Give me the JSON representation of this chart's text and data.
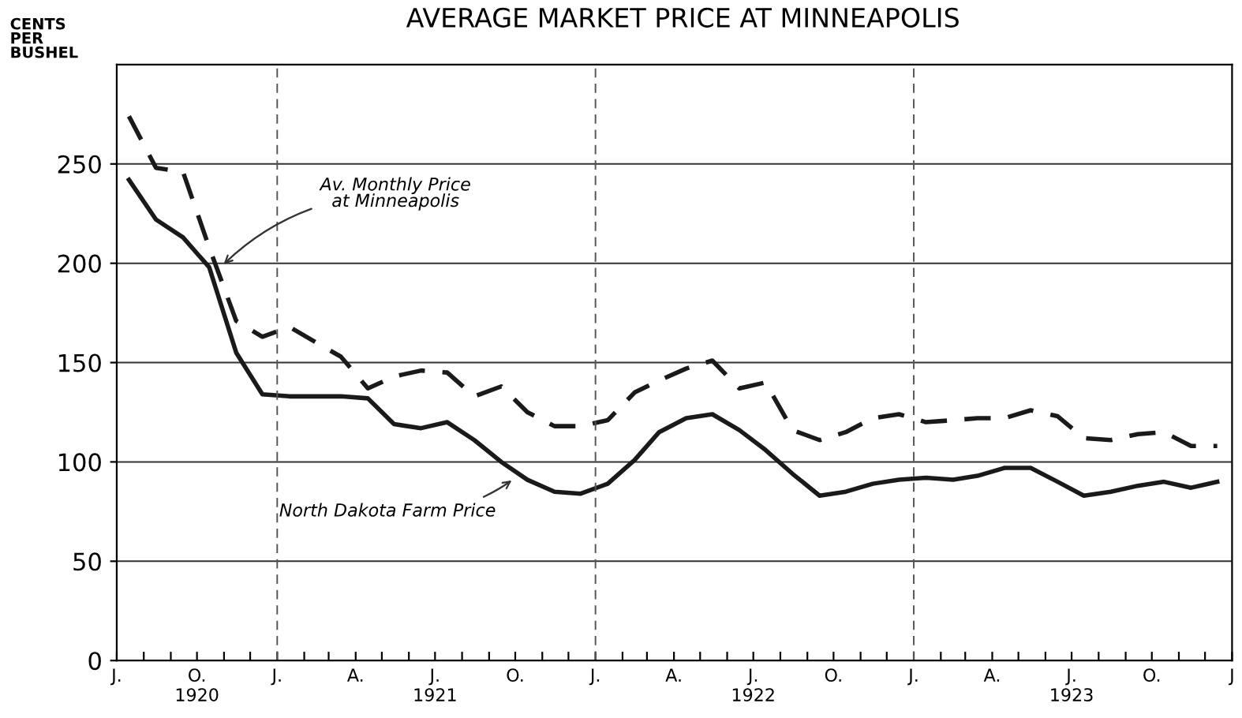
{
  "chart_data": {
    "type": "line",
    "title": "AVERAGE MARKET PRICE AT MINNEAPOLIS",
    "ylabel": "CENTS\nPER\nBUSHEL",
    "x": [
      "1920-07-15",
      "1920-08-15",
      "1920-09-15",
      "1920-10-15",
      "1920-11-15",
      "1920-12-15",
      "1921-01-15",
      "1921-02-15",
      "1921-03-15",
      "1921-04-15",
      "1921-05-15",
      "1921-06-15",
      "1921-07-15",
      "1921-08-15",
      "1921-09-15",
      "1921-10-15",
      "1921-11-15",
      "1921-12-15",
      "1922-01-15",
      "1922-02-15",
      "1922-03-15",
      "1922-04-15",
      "1922-05-15",
      "1922-06-15",
      "1922-07-15",
      "1922-08-15",
      "1922-09-15",
      "1922-10-15",
      "1922-11-15",
      "1922-12-15",
      "1923-01-15",
      "1923-02-15",
      "1923-03-15",
      "1923-04-15",
      "1923-05-15",
      "1923-06-15",
      "1923-07-15",
      "1923-08-15",
      "1923-09-15",
      "1923-10-15",
      "1923-11-15",
      "1923-12-15"
    ],
    "series": [
      {
        "color": "#1a1a1a",
        "line_style": "dashed",
        "values": [
          274,
          248,
          246,
          208,
          171,
          163,
          168,
          160,
          153,
          137,
          143,
          146,
          145,
          133,
          138,
          125,
          118,
          118,
          121,
          135,
          141,
          147,
          151,
          137,
          140,
          116,
          111,
          115,
          122,
          124,
          120,
          121,
          122,
          122,
          126,
          123,
          112,
          111,
          114,
          115,
          108,
          108
        ]
      },
      {
        "color": "#1a1a1a",
        "line_style": "solid",
        "values": [
          242,
          222,
          213,
          198,
          155,
          134,
          133,
          133,
          133,
          132,
          119,
          117,
          120,
          111,
          100,
          91,
          85,
          84,
          89,
          101,
          115,
          122,
          124,
          116,
          106,
          94,
          83,
          85,
          89,
          91,
          92,
          91,
          93,
          97,
          97,
          90,
          83,
          85,
          88,
          90,
          87,
          90
        ]
      }
    ],
    "xlim": [
      "1920-07-01",
      "1924-01-01"
    ],
    "ylim": [
      0,
      300
    ],
    "yticks": [
      0,
      50,
      100,
      150,
      200,
      250
    ],
    "xticks": [
      {
        "value": "1920-07-01",
        "label": "J."
      },
      {
        "value": "1920-08-01",
        "label": null
      },
      {
        "value": "1920-09-01",
        "label": null
      },
      {
        "value": "1920-10-01",
        "label": "O.\n1920"
      },
      {
        "value": "1920-11-01",
        "label": null
      },
      {
        "value": "1920-12-01",
        "label": null
      },
      {
        "value": "1921-01-01",
        "label": "J."
      },
      {
        "value": "1921-02-01",
        "label": null
      },
      {
        "value": "1921-03-01",
        "label": null
      },
      {
        "value": "1921-04-01",
        "label": "A."
      },
      {
        "value": "1921-05-01",
        "label": null
      },
      {
        "value": "1921-06-01",
        "label": null
      },
      {
        "value": "1921-07-01",
        "label": "J.\n1921"
      },
      {
        "value": "1921-08-01",
        "label": null
      },
      {
        "value": "1921-09-01",
        "label": null
      },
      {
        "value": "1921-10-01",
        "label": "O."
      },
      {
        "value": "1921-11-01",
        "label": null
      },
      {
        "value": "1921-12-01",
        "label": null
      },
      {
        "value": "1922-01-01",
        "label": "J."
      },
      {
        "value": "1922-02-01",
        "label": null
      },
      {
        "value": "1922-03-01",
        "label": null
      },
      {
        "value": "1922-04-01",
        "label": "A."
      },
      {
        "value": "1922-05-01",
        "label": null
      },
      {
        "value": "1922-06-01",
        "label": null
      },
      {
        "value": "1922-07-01",
        "label": "J.\n1922"
      },
      {
        "value": "1922-08-01",
        "label": null
      },
      {
        "value": "1922-09-01",
        "label": null
      },
      {
        "value": "1922-10-01",
        "label": "O."
      },
      {
        "value": "1922-11-01",
        "label": null
      },
      {
        "value": "1922-12-01",
        "label": null
      },
      {
        "value": "1923-01-01",
        "label": "J."
      },
      {
        "value": "1923-02-01",
        "label": null
      },
      {
        "value": "1923-03-01",
        "label": null
      },
      {
        "value": "1923-04-01",
        "label": "A."
      },
      {
        "value": "1923-05-01",
        "label": null
      },
      {
        "value": "1923-06-01",
        "label": null
      },
      {
        "value": "1923-07-01",
        "label": "J.\n1923"
      },
      {
        "value": "1923-08-01",
        "label": null
      },
      {
        "value": "1923-09-01",
        "label": null
      },
      {
        "value": "1923-10-01",
        "label": "O."
      },
      {
        "value": "1923-11-01",
        "label": null
      },
      {
        "value": "1923-12-01",
        "label": null
      },
      {
        "value": "1924-01-01",
        "label": "J"
      }
    ],
    "grid": "y",
    "ref_lines": [
      {
        "axis": "x",
        "value": "1921-01-01",
        "line_style": "dashed"
      },
      {
        "axis": "x",
        "value": "1922-01-01",
        "line_style": "dashed"
      },
      {
        "axis": "x",
        "value": "1923-01-01",
        "line_style": "dashed"
      }
    ],
    "annotations": [
      {
        "text": "Av. Monthly Price\nat Minneapolis",
        "x": "1920-10-28",
        "y": 198
      },
      {
        "text": "North Dakota Farm Price",
        "x": "1921-10-01",
        "y": 92
      }
    ]
  }
}
